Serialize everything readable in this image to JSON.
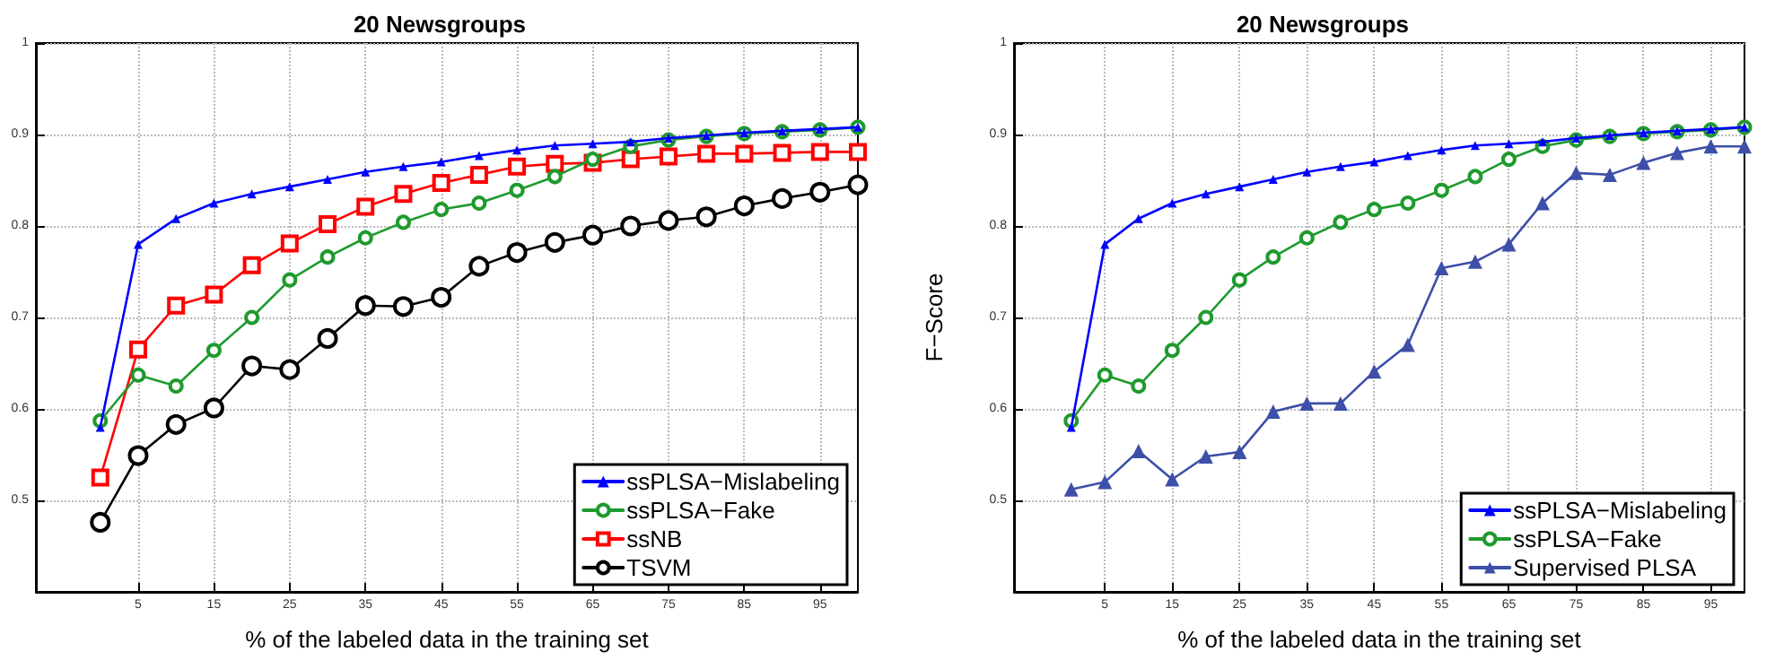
{
  "chart_data": [
    {
      "type": "line",
      "title": "20 Newsgroups",
      "xlabel": "% of the labeled data in the training set",
      "x": [
        0,
        5,
        10,
        15,
        20,
        25,
        30,
        35,
        40,
        45,
        50,
        55,
        60,
        65,
        70,
        75,
        80,
        85,
        90,
        95,
        100
      ],
      "xlim": [
        -8.5,
        100
      ],
      "xticks": [
        5,
        15,
        25,
        35,
        45,
        55,
        65,
        75,
        85,
        95
      ],
      "ylim": [
        0.4,
        1
      ],
      "yticks": [
        {
          "value": 0.5,
          "label": "0.5"
        },
        {
          "value": 0.6,
          "label": "0.6"
        },
        {
          "value": 0.7,
          "label": "0.7"
        },
        {
          "value": 0.8,
          "label": "0.8"
        },
        {
          "value": 0.9,
          "label": "0.9"
        },
        {
          "value": 1,
          "label": "1"
        }
      ],
      "grid": true,
      "legend": "bottom right",
      "line_style": "solid",
      "series": [
        {
          "name": "ssPLSA−Mislabeling",
          "color": "#0000ff",
          "marker": "triangle",
          "values": [
            0.58,
            0.78,
            0.808,
            0.825,
            0.835,
            0.843,
            0.851,
            0.859,
            0.865,
            0.87,
            0.877,
            0.883,
            0.888,
            0.89,
            0.892,
            0.896,
            0.899,
            0.902,
            0.904,
            0.906,
            0.908
          ]
        },
        {
          "name": "ssPLSA−Fake",
          "color": "#1f9a2e",
          "marker": "circle",
          "values": [
            0.587,
            0.637,
            0.625,
            0.664,
            0.7,
            0.741,
            0.766,
            0.787,
            0.804,
            0.818,
            0.825,
            0.839,
            0.854,
            0.873,
            0.887,
            0.894,
            0.898,
            0.901,
            0.903,
            0.905,
            0.908
          ]
        },
        {
          "name": "ssNB",
          "color": "#ff0000",
          "marker": "square",
          "values": [
            0.525,
            0.665,
            0.713,
            0.725,
            0.757,
            0.781,
            0.802,
            0.821,
            0.835,
            0.847,
            0.856,
            0.865,
            0.868,
            0.869,
            0.873,
            0.876,
            0.879,
            0.879,
            0.88,
            0.881,
            0.881
          ]
        },
        {
          "name": "TSVM",
          "color": "#000000",
          "marker": "circle",
          "values": [
            0.476,
            0.549,
            0.583,
            0.601,
            0.647,
            0.643,
            0.677,
            0.713,
            0.712,
            0.722,
            0.756,
            0.771,
            0.782,
            0.79,
            0.8,
            0.806,
            0.81,
            0.822,
            0.83,
            0.837,
            0.845
          ]
        }
      ]
    },
    {
      "type": "line",
      "title": "20 Newsgroups",
      "xlabel": "% of the labeled data in the training set",
      "ylabel": "F−Score",
      "x": [
        0,
        5,
        10,
        15,
        20,
        25,
        30,
        35,
        40,
        45,
        50,
        55,
        60,
        65,
        70,
        75,
        80,
        85,
        90,
        95,
        100
      ],
      "xlim": [
        -8.5,
        100
      ],
      "xticks": [
        5,
        15,
        25,
        35,
        45,
        55,
        65,
        75,
        85,
        95
      ],
      "ylim": [
        0.4,
        1
      ],
      "yticks": [
        {
          "value": 0.5,
          "label": "0.5"
        },
        {
          "value": 0.6,
          "label": "0.6"
        },
        {
          "value": 0.7,
          "label": "0.7"
        },
        {
          "value": 0.8,
          "label": "0.8"
        },
        {
          "value": 0.9,
          "label": "0.9"
        },
        {
          "value": 1,
          "label": "1"
        }
      ],
      "grid": true,
      "legend": "bottom right",
      "line_style": "solid",
      "series": [
        {
          "name": "ssPLSA−Mislabeling",
          "color": "#0000ff",
          "marker": "triangle",
          "values": [
            0.58,
            0.78,
            0.808,
            0.825,
            0.835,
            0.843,
            0.851,
            0.859,
            0.865,
            0.87,
            0.877,
            0.883,
            0.888,
            0.89,
            0.892,
            0.896,
            0.899,
            0.902,
            0.904,
            0.906,
            0.908
          ]
        },
        {
          "name": "ssPLSA−Fake",
          "color": "#1f9a2e",
          "marker": "circle",
          "values": [
            0.587,
            0.637,
            0.625,
            0.664,
            0.7,
            0.741,
            0.766,
            0.787,
            0.804,
            0.818,
            0.825,
            0.839,
            0.854,
            0.873,
            0.887,
            0.894,
            0.898,
            0.901,
            0.903,
            0.905,
            0.908
          ]
        },
        {
          "name": "Supervised PLSA",
          "color": "#3d4fa8",
          "marker": "triangle",
          "values": [
            0.512,
            0.52,
            0.554,
            0.523,
            0.548,
            0.553,
            0.597,
            0.606,
            0.606,
            0.641,
            0.67,
            0.754,
            0.761,
            0.78,
            0.825,
            0.858,
            0.856,
            0.869,
            0.88,
            0.887,
            0.887
          ]
        }
      ]
    }
  ]
}
